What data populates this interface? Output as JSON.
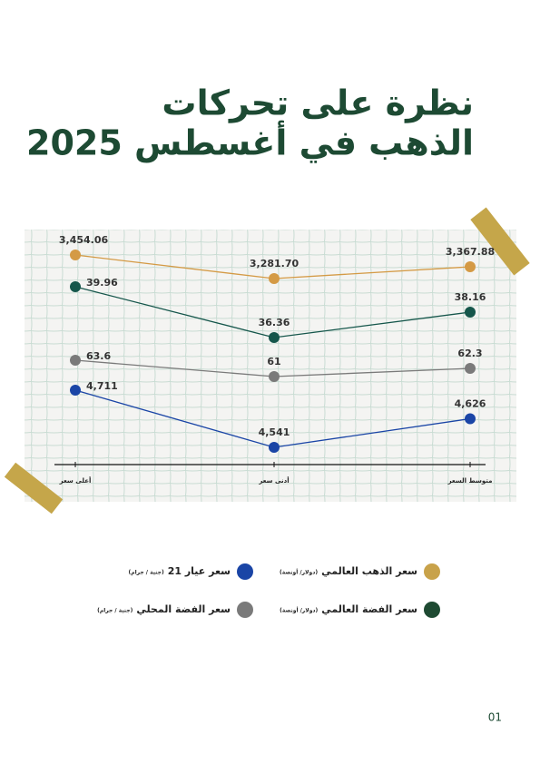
{
  "chart_data": {
    "type": "line",
    "title": [
      "نظرة على تحركات",
      "الذهب في أغسطس 2025"
    ],
    "categories": [
      "أعلى سعر",
      "أدنى سعر",
      "متوسط السعر"
    ],
    "series": [
      {
        "name": "سعر الذهب العالمي",
        "unit": "(دولار/ أونصة)",
        "color": "#d49a45",
        "values": [
          3454.06,
          3281.7,
          3367.88
        ],
        "value_labels": [
          "3,454.06",
          "3,281.70",
          "3,367.88"
        ]
      },
      {
        "name": "سعر الفضة العالمي",
        "unit": "(دولار/ أونصة)",
        "color": "#15564b",
        "values": [
          39.96,
          36.36,
          38.16
        ]
      },
      {
        "name": "سعر الفضة المحلي",
        "unit": "(جنية / جرام)",
        "color": "#7a7a7a",
        "values": [
          63.6,
          61,
          62.3
        ]
      },
      {
        "name": "سعر عيار 21",
        "unit": "(جنية / جرام)",
        "color": "#1a45a6",
        "values": [
          4711,
          4541,
          4626
        ],
        "value_labels": [
          "4,711",
          "4,541",
          "4,626"
        ]
      }
    ]
  },
  "page_number": "01"
}
